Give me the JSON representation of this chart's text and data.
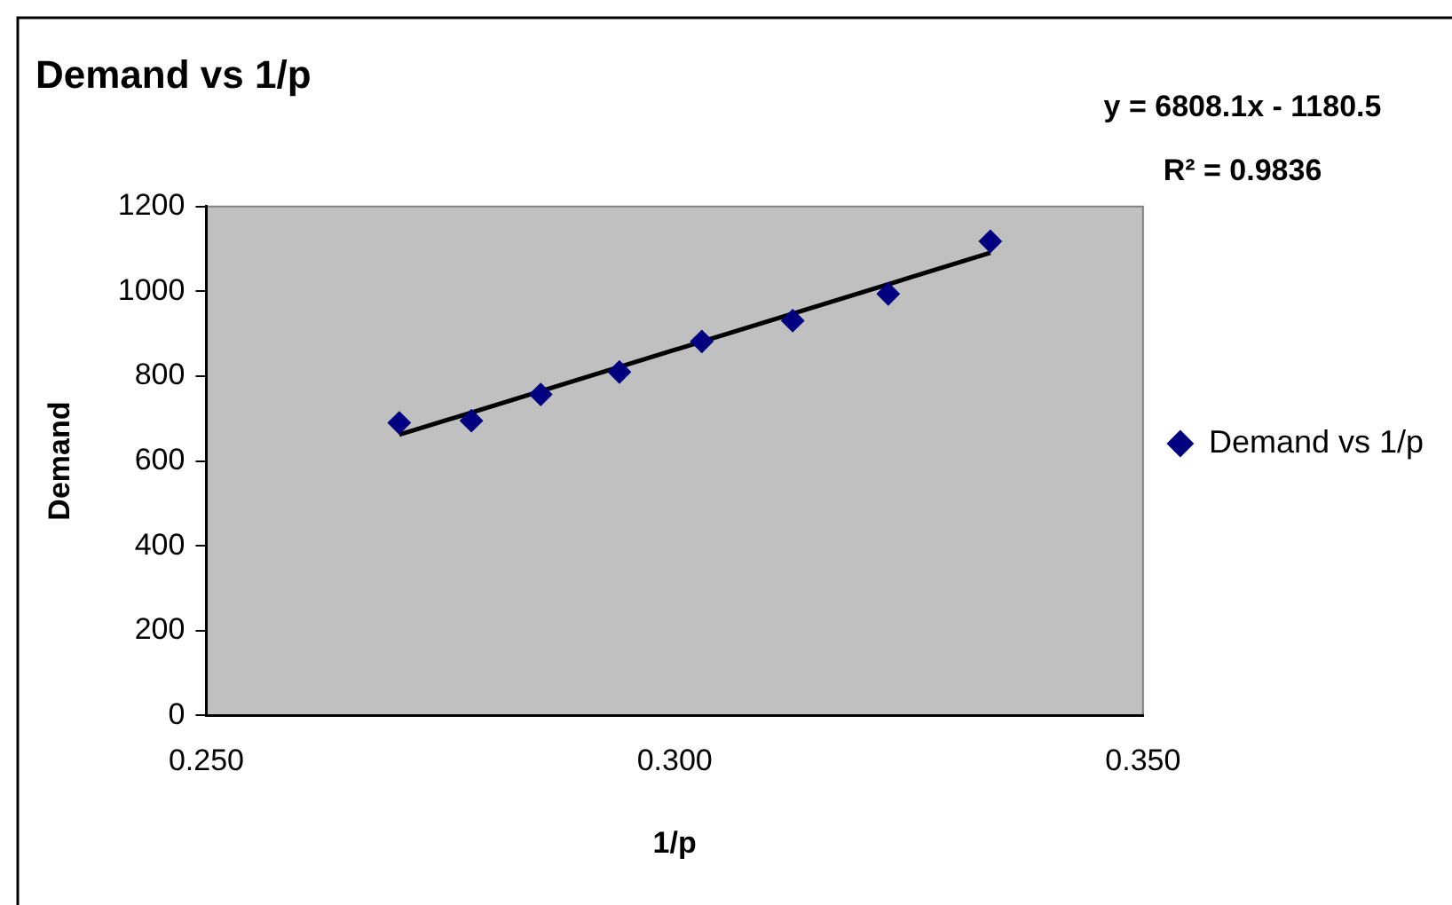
{
  "chart_data": {
    "type": "scatter",
    "title": "Demand vs 1/p",
    "xlabel": "1/p",
    "ylabel": "Demand",
    "series": [
      {
        "name": "Demand vs 1/p",
        "color": "#000080",
        "marker": "diamond",
        "x": [
          0.2706,
          0.2783,
          0.2857,
          0.2941,
          0.3029,
          0.3126,
          0.3228,
          0.3337
        ],
        "values": [
          690,
          695,
          757,
          810,
          882,
          931,
          994,
          1118
        ]
      },
      {
        "type": "line",
        "color": "#000000",
        "marker": "none",
        "x": [
          0.2706,
          0.3337
        ],
        "values": [
          662,
          1091
        ]
      }
    ],
    "xlim": [
      0.25,
      0.35
    ],
    "xticks": [
      {
        "value": 0.25,
        "label": "0.250"
      },
      {
        "value": 0.3,
        "label": "0.300"
      },
      {
        "value": 0.35,
        "label": "0.350"
      }
    ],
    "ylim": [
      0,
      1200
    ],
    "yticks": [
      0,
      200,
      400,
      600,
      800,
      1000,
      1200
    ],
    "grid": false,
    "legend": "right",
    "annotations": [
      "y = 6808.1x - 1180.5",
      "R² = 0.9836"
    ]
  }
}
